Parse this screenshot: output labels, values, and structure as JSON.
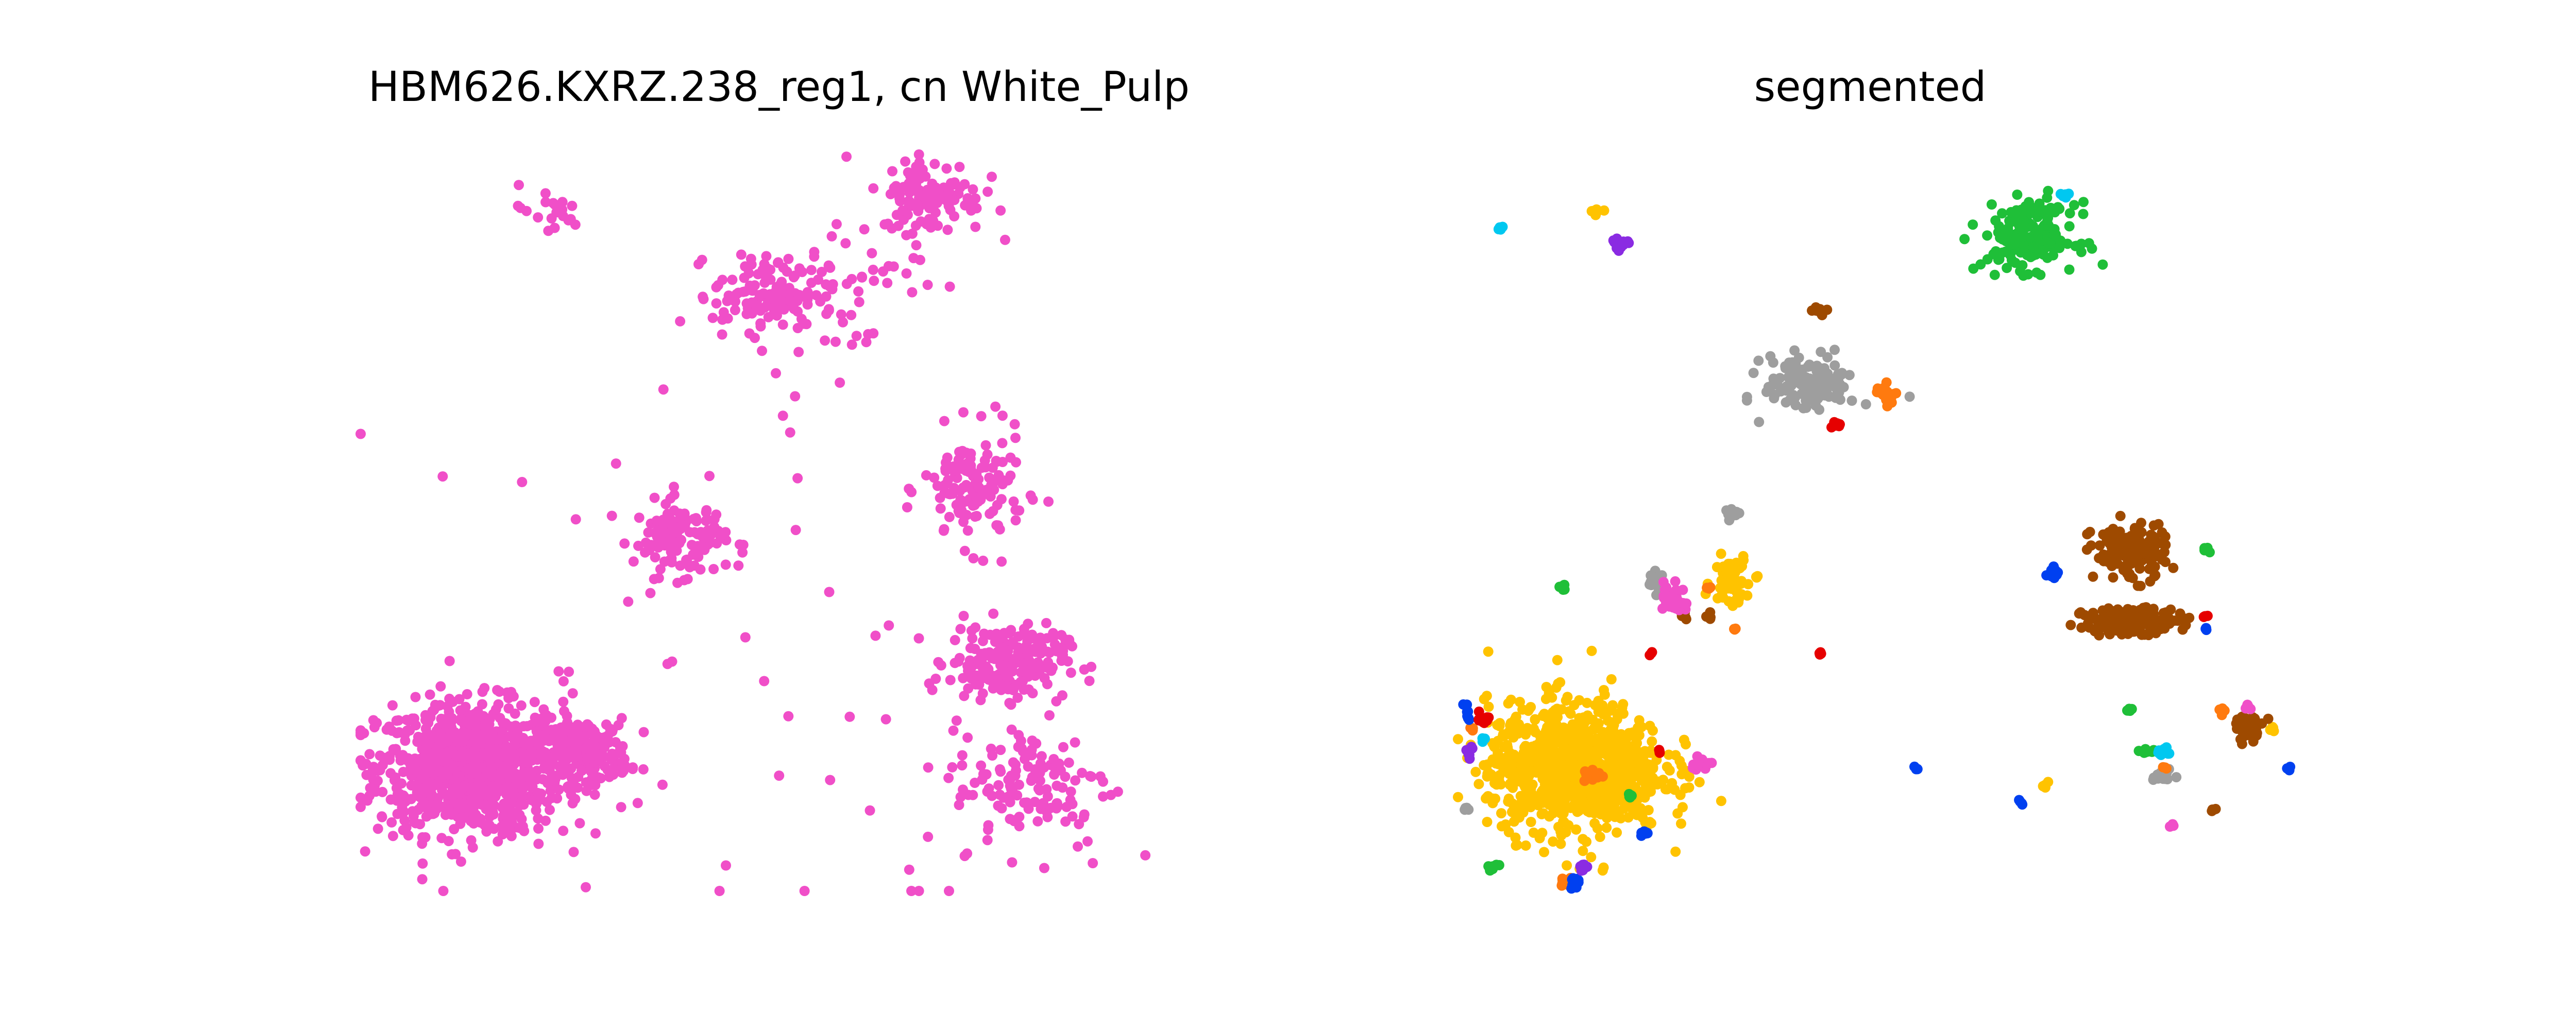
{
  "chart_data": [
    {
      "type": "scatter",
      "title": "HBM626.KXRZ.238_reg1, cn White_Pulp",
      "xlabel": "",
      "ylabel": "",
      "axes_visible": false,
      "grid": false,
      "xlim": [
        0,
        1000
      ],
      "ylim": [
        0,
        900
      ],
      "color": "#f04fc8",
      "note_points": "clusters of cells; centers and spreads estimated from the image",
      "clusters": [
        {
          "x": 130,
          "y": 150,
          "sx": 110,
          "sy": 80,
          "n": 900
        },
        {
          "x": 265,
          "y": 170,
          "sx": 55,
          "sy": 40,
          "n": 200
        },
        {
          "x": 380,
          "y": 430,
          "sx": 55,
          "sy": 45,
          "n": 120
        },
        {
          "x": 730,
          "y": 490,
          "sx": 60,
          "sy": 70,
          "n": 130
        },
        {
          "x": 770,
          "y": 280,
          "sx": 70,
          "sy": 45,
          "n": 200
        },
        {
          "x": 480,
          "y": 730,
          "sx": 60,
          "sy": 45,
          "n": 110
        },
        {
          "x": 800,
          "y": 130,
          "sx": 95,
          "sy": 80,
          "n": 130
        },
        {
          "x": 680,
          "y": 850,
          "sx": 60,
          "sy": 45,
          "n": 110
        },
        {
          "x": 220,
          "y": 830,
          "sx": 45,
          "sy": 30,
          "n": 20
        },
        {
          "x": 570,
          "y": 740,
          "sx": 100,
          "sy": 90,
          "n": 60
        },
        {
          "x": 450,
          "y": 250,
          "sx": 400,
          "sy": 400,
          "n": 60
        }
      ]
    },
    {
      "type": "scatter",
      "title": "segmented",
      "xlabel": "",
      "ylabel": "",
      "axes_visible": false,
      "grid": false,
      "xlim": [
        0,
        1000
      ],
      "ylim": [
        0,
        900
      ],
      "series": [
        {
          "color": "#ffc300",
          "clusters": [
            {
              "x": 140,
              "y": 150,
              "sx": 105,
              "sy": 80,
              "n": 900
            },
            {
              "x": 325,
              "y": 380,
              "sx": 22,
              "sy": 30,
              "n": 60
            },
            {
              "x": 355,
              "y": 385,
              "sx": 3,
              "sy": 3,
              "n": 4
            },
            {
              "x": 700,
              "y": 130,
              "sx": 5,
              "sy": 5,
              "n": 6
            },
            {
              "x": 970,
              "y": 200,
              "sx": 4,
              "sy": 4,
              "n": 5
            },
            {
              "x": 165,
              "y": 830,
              "sx": 6,
              "sy": 5,
              "n": 8
            }
          ]
        },
        {
          "color": "#1fbf38",
          "clusters": [
            {
              "x": 680,
              "y": 800,
              "sx": 55,
              "sy": 40,
              "n": 180
            },
            {
              "x": 125,
              "y": 370,
              "sx": 4,
              "sy": 4,
              "n": 6
            },
            {
              "x": 820,
              "y": 170,
              "sx": 8,
              "sy": 5,
              "n": 8
            },
            {
              "x": 800,
              "y": 220,
              "sx": 4,
              "sy": 4,
              "n": 5
            },
            {
              "x": 40,
              "y": 30,
              "sx": 8,
              "sy": 6,
              "n": 10
            },
            {
              "x": 205,
              "y": 115,
              "sx": 4,
              "sy": 4,
              "n": 5
            },
            {
              "x": 890,
              "y": 420,
              "sx": 4,
              "sy": 4,
              "n": 5
            }
          ]
        },
        {
          "color": "#9e9e9e",
          "clusters": [
            {
              "x": 420,
              "y": 620,
              "sx": 55,
              "sy": 35,
              "n": 130
            },
            {
              "x": 325,
              "y": 460,
              "sx": 10,
              "sy": 5,
              "n": 15
            },
            {
              "x": 235,
              "y": 380,
              "sx": 8,
              "sy": 15,
              "n": 20
            },
            {
              "x": 840,
              "y": 140,
              "sx": 12,
              "sy": 8,
              "n": 15
            },
            {
              "x": 10,
              "y": 100,
              "sx": 4,
              "sy": 5,
              "n": 6
            }
          ]
        },
        {
          "color": "#9e4a00",
          "clusters": [
            {
              "x": 800,
              "y": 415,
              "sx": 45,
              "sy": 35,
              "n": 130
            },
            {
              "x": 800,
              "y": 330,
              "sx": 55,
              "sy": 15,
              "n": 200
            },
            {
              "x": 940,
              "y": 200,
              "sx": 20,
              "sy": 15,
              "n": 30
            },
            {
              "x": 430,
              "y": 710,
              "sx": 10,
              "sy": 5,
              "n": 8
            },
            {
              "x": 270,
              "y": 335,
              "sx": 5,
              "sy": 5,
              "n": 6
            },
            {
              "x": 300,
              "y": 335,
              "sx": 4,
              "sy": 6,
              "n": 6
            },
            {
              "x": 900,
              "y": 100,
              "sx": 3,
              "sy": 3,
              "n": 4
            }
          ]
        },
        {
          "color": "#f04fc8",
          "clusters": [
            {
              "x": 255,
              "y": 360,
              "sx": 15,
              "sy": 20,
              "n": 30
            },
            {
              "x": 290,
              "y": 155,
              "sx": 12,
              "sy": 8,
              "n": 20
            },
            {
              "x": 940,
              "y": 225,
              "sx": 4,
              "sy": 4,
              "n": 6
            },
            {
              "x": 850,
              "y": 80,
              "sx": 4,
              "sy": 3,
              "n": 4
            }
          ]
        },
        {
          "color": "#ff7a0f",
          "clusters": [
            {
              "x": 510,
              "y": 610,
              "sx": 12,
              "sy": 12,
              "n": 25
            },
            {
              "x": 160,
              "y": 140,
              "sx": 12,
              "sy": 10,
              "n": 15
            },
            {
              "x": 130,
              "y": 10,
              "sx": 10,
              "sy": 6,
              "n": 15
            },
            {
              "x": 15,
              "y": 200,
              "sx": 4,
              "sy": 4,
              "n": 5
            },
            {
              "x": 330,
              "y": 320,
              "sx": 3,
              "sy": 3,
              "n": 3
            },
            {
              "x": 300,
              "y": 370,
              "sx": 3,
              "sy": 3,
              "n": 3
            },
            {
              "x": 910,
              "y": 220,
              "sx": 6,
              "sy": 6,
              "n": 6
            },
            {
              "x": 840,
              "y": 150,
              "sx": 3,
              "sy": 3,
              "n": 3
            }
          ]
        },
        {
          "color": "#0040f0",
          "clusters": [
            {
              "x": 710,
              "y": 390,
              "sx": 8,
              "sy": 10,
              "n": 10
            },
            {
              "x": 140,
              "y": 10,
              "sx": 8,
              "sy": 8,
              "n": 15
            },
            {
              "x": 10,
              "y": 220,
              "sx": 4,
              "sy": 10,
              "n": 8
            },
            {
              "x": 220,
              "y": 70,
              "sx": 6,
              "sy": 4,
              "n": 6
            },
            {
              "x": 545,
              "y": 150,
              "sx": 3,
              "sy": 3,
              "n": 3
            },
            {
              "x": 670,
              "y": 110,
              "sx": 4,
              "sy": 4,
              "n": 4
            },
            {
              "x": 890,
              "y": 320,
              "sx": 3,
              "sy": 3,
              "n": 3
            },
            {
              "x": 990,
              "y": 150,
              "sx": 3,
              "sy": 3,
              "n": 3
            }
          ]
        },
        {
          "color": "#e60000",
          "clusters": [
            {
              "x": 450,
              "y": 570,
              "sx": 5,
              "sy": 6,
              "n": 8
            },
            {
              "x": 30,
              "y": 210,
              "sx": 8,
              "sy": 6,
              "n": 10
            },
            {
              "x": 230,
              "y": 290,
              "sx": 3,
              "sy": 3,
              "n": 3
            },
            {
              "x": 430,
              "y": 290,
              "sx": 4,
              "sy": 3,
              "n": 4
            },
            {
              "x": 890,
              "y": 335,
              "sx": 3,
              "sy": 3,
              "n": 3
            },
            {
              "x": 240,
              "y": 170,
              "sx": 3,
              "sy": 3,
              "n": 3
            }
          ]
        },
        {
          "color": "#8a2be2",
          "clusters": [
            {
              "x": 190,
              "y": 790,
              "sx": 12,
              "sy": 10,
              "n": 14
            },
            {
              "x": 15,
              "y": 170,
              "sx": 5,
              "sy": 8,
              "n": 8
            },
            {
              "x": 150,
              "y": 30,
              "sx": 8,
              "sy": 5,
              "n": 10
            }
          ]
        },
        {
          "color": "#00c8f0",
          "clusters": [
            {
              "x": 50,
              "y": 810,
              "sx": 5,
              "sy": 3,
              "n": 6
            },
            {
              "x": 720,
              "y": 850,
              "sx": 6,
              "sy": 3,
              "n": 5
            },
            {
              "x": 840,
              "y": 170,
              "sx": 10,
              "sy": 5,
              "n": 12
            },
            {
              "x": 30,
              "y": 185,
              "sx": 3,
              "sy": 3,
              "n": 3
            }
          ]
        }
      ]
    }
  ]
}
